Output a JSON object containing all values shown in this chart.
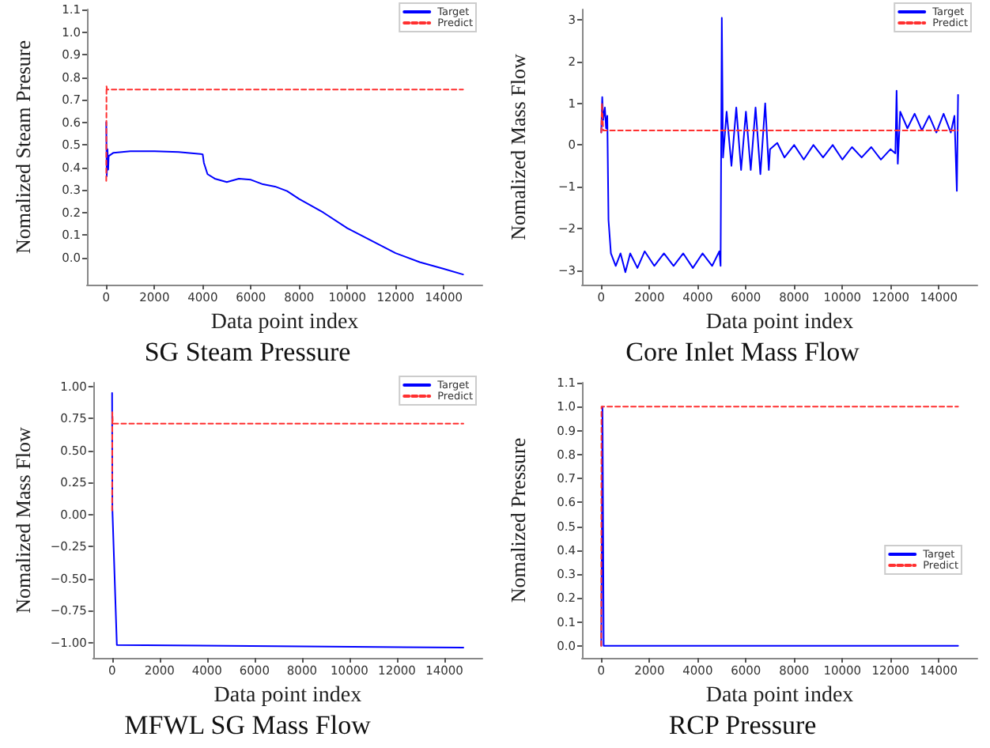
{
  "chart_data": [
    {
      "type": "line",
      "title": "SG Steam Pressure",
      "xlabel": "Data point index",
      "ylabel": "Nomalized Steam Presure",
      "xlim": [
        -800,
        15600
      ],
      "xticks": [
        0,
        2000,
        4000,
        6000,
        8000,
        10000,
        12000,
        14000
      ],
      "ylim": [
        -0.12,
        1.1
      ],
      "yticks": [
        {
          "value": 0,
          "label": "0.0"
        },
        0.1,
        0.2,
        0.3,
        0.4,
        0.5,
        0.6,
        0.7,
        0.8,
        0.9,
        {
          "value": 1,
          "label": "1.0"
        },
        1.1
      ],
      "grid": false,
      "legend": "top right",
      "marker": "none",
      "series": [
        {
          "name": "Target",
          "color": "#0000ff",
          "line_style": "solid",
          "x": [
            0,
            20,
            50,
            80,
            100,
            300,
            1000,
            2000,
            3000,
            4000,
            4050,
            4200,
            4500,
            5000,
            5500,
            6000,
            6500,
            7000,
            7500,
            8000,
            9000,
            10000,
            11000,
            12000,
            13000,
            14000,
            14800
          ],
          "values": [
            0.6,
            0.36,
            0.48,
            0.39,
            0.45,
            0.465,
            0.472,
            0.472,
            0.468,
            0.458,
            0.42,
            0.37,
            0.35,
            0.335,
            0.35,
            0.345,
            0.325,
            0.315,
            0.295,
            0.26,
            0.2,
            0.13,
            0.075,
            0.02,
            -0.02,
            -0.05,
            -0.075
          ]
        },
        {
          "name": "Predict",
          "color": "#ff3030",
          "line_style": "dashed",
          "x": [
            0,
            10,
            30,
            14800
          ],
          "values": [
            0.34,
            0.76,
            0.745,
            0.745
          ]
        }
      ]
    },
    {
      "type": "line",
      "title": "Core Inlet Mass Flow",
      "xlabel": "Data point index",
      "ylabel": "Nomalized Mass Flow",
      "xlim": [
        -800,
        15600
      ],
      "xticks": [
        0,
        2000,
        4000,
        6000,
        8000,
        10000,
        12000,
        14000
      ],
      "ylim": [
        -3.35,
        3.25
      ],
      "yticks": [
        {
          "value": -3,
          "label": "−3"
        },
        {
          "value": -2,
          "label": "−2"
        },
        {
          "value": -1,
          "label": "−1"
        },
        0,
        1,
        2,
        3
      ],
      "grid": false,
      "legend": "top right",
      "marker": "none",
      "series": [
        {
          "name": "Target",
          "color": "#0000ff",
          "line_style": "solid",
          "x": [
            0,
            40,
            80,
            150,
            200,
            250,
            300,
            400,
            600,
            800,
            1000,
            1200,
            1500,
            1800,
            2200,
            2600,
            3000,
            3400,
            3800,
            4200,
            4600,
            4900,
            4950,
            5000,
            5050,
            5200,
            5400,
            5600,
            5800,
            6000,
            6200,
            6400,
            6600,
            6800,
            6950,
            7000,
            7300,
            7600,
            8000,
            8400,
            8800,
            9200,
            9600,
            10000,
            10400,
            10800,
            11200,
            11600,
            12000,
            12200,
            12250,
            12300,
            12400,
            12700,
            13000,
            13300,
            13600,
            13900,
            14200,
            14500,
            14650,
            14750,
            14800
          ],
          "values": [
            0.3,
            1.15,
            0.6,
            0.9,
            0.4,
            0.7,
            -1.8,
            -2.6,
            -2.9,
            -2.6,
            -3.05,
            -2.6,
            -2.95,
            -2.55,
            -2.9,
            -2.6,
            -2.9,
            -2.6,
            -2.95,
            -2.6,
            -2.9,
            -2.55,
            -2.9,
            3.05,
            -0.3,
            0.8,
            -0.5,
            0.9,
            -0.6,
            0.8,
            -0.6,
            0.9,
            -0.7,
            1.0,
            -0.6,
            -0.1,
            0.05,
            -0.3,
            0.0,
            -0.35,
            0.0,
            -0.3,
            0.0,
            -0.35,
            -0.05,
            -0.3,
            -0.05,
            -0.35,
            -0.1,
            -0.2,
            1.3,
            -0.45,
            0.8,
            0.4,
            0.75,
            0.35,
            0.7,
            0.3,
            0.75,
            0.3,
            0.7,
            -1.1,
            1.2
          ]
        },
        {
          "name": "Predict",
          "color": "#ff3030",
          "line_style": "dashed",
          "x": [
            0,
            30,
            80,
            14800
          ],
          "values": [
            0.3,
            1.0,
            0.35,
            0.35
          ]
        }
      ]
    },
    {
      "type": "line",
      "title": "MFWL SG Mass Flow",
      "xlabel": "Data point index",
      "ylabel": "Nomalized Mass Flow",
      "xlim": [
        -800,
        15600
      ],
      "xticks": [
        0,
        2000,
        4000,
        6000,
        8000,
        10000,
        12000,
        14000
      ],
      "ylim": [
        -1.12,
        1.03
      ],
      "yticks": [
        {
          "value": -1,
          "label": "−1.00"
        },
        {
          "value": -0.75,
          "label": "−0.75"
        },
        {
          "value": -0.5,
          "label": "−0.50"
        },
        {
          "value": -0.25,
          "label": "−0.25"
        },
        {
          "value": 0,
          "label": "0.00"
        },
        0.25,
        {
          "value": 0.5,
          "label": "0.50"
        },
        0.75,
        {
          "value": 1,
          "label": "1.00"
        }
      ],
      "grid": false,
      "legend": "top right",
      "marker": "none",
      "series": [
        {
          "name": "Target",
          "color": "#0000ff",
          "line_style": "solid",
          "x": [
            0,
            10,
            200,
            14800
          ],
          "values": [
            0.95,
            0.05,
            -1.02,
            -1.04
          ]
        },
        {
          "name": "Predict",
          "color": "#ff3030",
          "line_style": "dashed",
          "x": [
            0,
            10,
            30,
            14800
          ],
          "values": [
            0.03,
            0.8,
            0.71,
            0.71
          ]
        }
      ]
    },
    {
      "type": "line",
      "title": "RCP Pressure",
      "xlabel": "Data point index",
      "ylabel": "Nomalized Pressure",
      "xlim": [
        -800,
        15600
      ],
      "xticks": [
        0,
        2000,
        4000,
        6000,
        8000,
        10000,
        12000,
        14000
      ],
      "ylim": [
        -0.05,
        1.1
      ],
      "yticks": [
        {
          "value": 0,
          "label": "0.0"
        },
        0.1,
        0.2,
        0.3,
        0.4,
        0.5,
        0.6,
        0.7,
        0.8,
        0.9,
        {
          "value": 1,
          "label": "1.0"
        },
        1.1
      ],
      "grid": false,
      "legend": "right",
      "marker": "none",
      "series": [
        {
          "name": "Target",
          "color": "#0000ff",
          "line_style": "solid",
          "x": [
            0,
            50,
            100,
            14800
          ],
          "values": [
            0,
            1,
            0,
            0
          ]
        },
        {
          "name": "Predict",
          "color": "#ff3030",
          "line_style": "dashed",
          "x": [
            0,
            10,
            14800
          ],
          "values": [
            0,
            1,
            1
          ]
        }
      ]
    }
  ]
}
